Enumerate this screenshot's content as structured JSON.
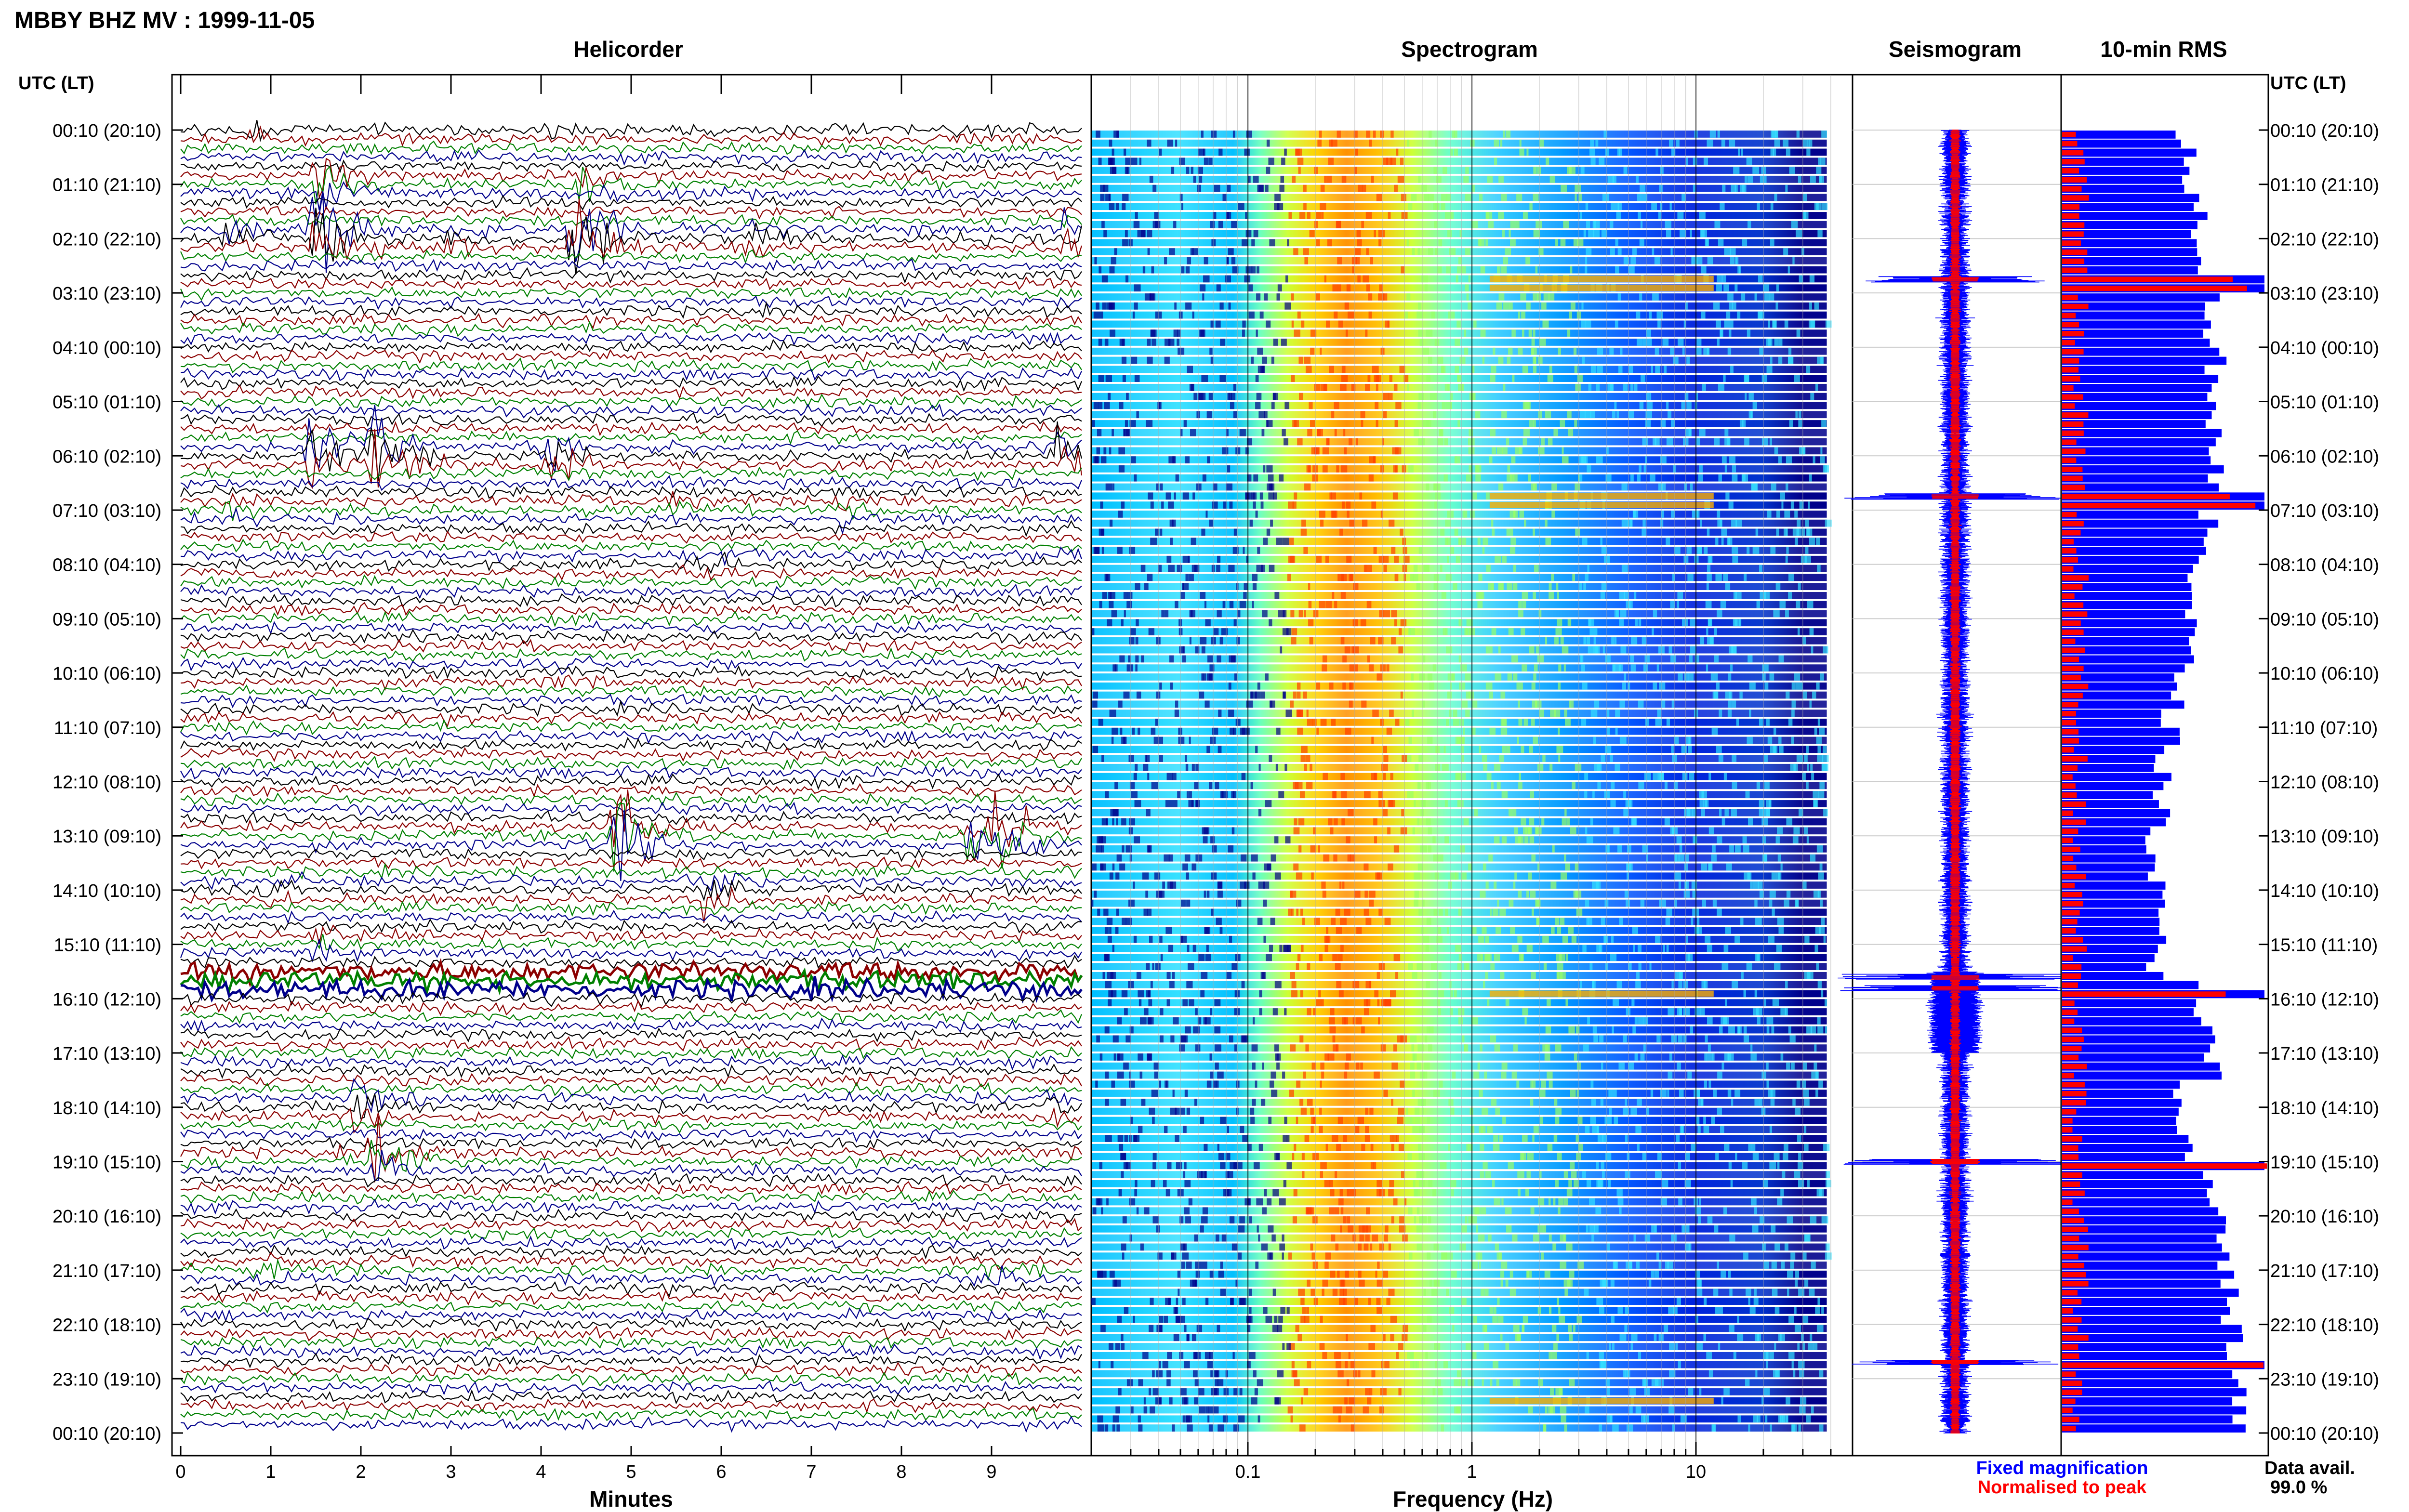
{
  "header": {
    "title": "MBBY BHZ MV : 1999-11-05",
    "left_axis_title": "UTC (LT)",
    "right_axis_title": "UTC (LT)"
  },
  "panels": {
    "helicorder": "Helicorder",
    "spectrogram": "Spectrogram",
    "seismogram": "Seismogram",
    "rms": "10-min RMS"
  },
  "legend": {
    "fixed": "Fixed magnification",
    "normalised": "Normalised to peak",
    "fixed_color": "#0000ff",
    "normalised_color": "#ff0000"
  },
  "data_avail": {
    "label": "Data avail.",
    "value": "99.0 %"
  },
  "colors": {
    "trace_cycle": [
      "#000000",
      "#8b0000",
      "#008000",
      "#00008b"
    ],
    "rms_fixed": "#0000ff",
    "rms_normalised": "#ff0000"
  },
  "chart_data": [
    {
      "type": "line",
      "name": "helicorder",
      "title": "Helicorder",
      "xlabel": "Minutes",
      "xticks": [
        "0",
        "1",
        "2",
        "3",
        "4",
        "5",
        "6",
        "7",
        "8",
        "9"
      ],
      "xlim": [
        0,
        10
      ],
      "time_labels": [
        "00:10 (20:10)",
        "01:10 (21:10)",
        "02:10 (22:10)",
        "03:10 (23:10)",
        "04:10 (00:10)",
        "05:10 (01:10)",
        "06:10 (02:10)",
        "07:10 (03:10)",
        "08:10 (04:10)",
        "09:10 (05:10)",
        "10:10 (06:10)",
        "11:10 (07:10)",
        "12:10 (08:10)",
        "13:10 (09:10)",
        "14:10 (10:10)",
        "15:10 (11:10)",
        "16:10 (12:10)",
        "17:10 (13:10)",
        "18:10 (14:10)",
        "19:10 (15:10)",
        "20:10 (16:10)",
        "21:10 (17:10)",
        "22:10 (18:10)",
        "23:10 (19:10)",
        "00:10 (20:10)"
      ],
      "events": [
        {
          "hour": 0,
          "minute": 0.7,
          "amp": 2.5
        },
        {
          "hour": 0,
          "minute": 4.05,
          "amp": 1.8
        },
        {
          "hour": 1,
          "minute": 1.5,
          "amp": 5.0
        },
        {
          "hour": 1,
          "minute": 4.4,
          "amp": 4.5
        },
        {
          "hour": 2,
          "minute": 1.45,
          "amp": 11
        },
        {
          "hour": 2,
          "minute": 4.35,
          "amp": 10
        },
        {
          "hour": 2,
          "minute": 0.5,
          "amp": 2.5
        },
        {
          "hour": 2,
          "minute": 3.0,
          "amp": 3.2
        },
        {
          "hour": 2,
          "minute": 6.3,
          "amp": 3.5
        },
        {
          "hour": 2,
          "minute": 9.8,
          "amp": 4.0
        },
        {
          "hour": 6,
          "minute": 1.4,
          "amp": 7
        },
        {
          "hour": 6,
          "minute": 2.1,
          "amp": 8
        },
        {
          "hour": 6,
          "minute": 4.05,
          "amp": 6
        },
        {
          "hour": 6,
          "minute": 9.7,
          "amp": 6
        },
        {
          "hour": 7,
          "minute": 0.5,
          "amp": 2.0
        },
        {
          "hour": 7,
          "minute": 5.4,
          "amp": 2.5
        },
        {
          "hour": 7,
          "minute": 7.3,
          "amp": 2.5
        },
        {
          "hour": 8,
          "minute": 5.5,
          "amp": 2.0
        },
        {
          "hour": 8,
          "minute": 6.0,
          "amp": 1.8
        },
        {
          "hour": 10,
          "minute": 4.2,
          "amp": 1.8
        },
        {
          "hour": 13,
          "minute": 4.8,
          "amp": 9
        },
        {
          "hour": 13,
          "minute": 9.0,
          "amp": 7
        },
        {
          "hour": 13,
          "minute": 8.7,
          "amp": 6
        },
        {
          "hour": 14,
          "minute": 0.9,
          "amp": 2.3
        },
        {
          "hour": 14,
          "minute": 5.8,
          "amp": 3.5
        },
        {
          "hour": 15,
          "minute": 1.5,
          "amp": 2.0
        },
        {
          "hour": 18,
          "minute": 1.9,
          "amp": 5
        },
        {
          "hour": 18,
          "minute": 9.6,
          "amp": 2.5
        },
        {
          "hour": 19,
          "minute": 2.1,
          "amp": 7
        },
        {
          "hour": 21,
          "minute": 0.8,
          "amp": 2.3
        },
        {
          "hour": 21,
          "minute": 8.9,
          "amp": 2.8
        }
      ],
      "busy_band_hour": 15.6
    },
    {
      "type": "heatmap",
      "name": "spectrogram",
      "title": "Spectrogram",
      "xlabel": "Frequency (Hz)",
      "xscale": "log",
      "xlim": [
        0.02,
        50
      ],
      "xticks": [
        "0.1",
        "1",
        "10"
      ],
      "colormap": [
        "#00008b",
        "#0000ff",
        "#0066ff",
        "#00bfff",
        "#33e0ff",
        "#99ff66",
        "#ffff00",
        "#ffb000",
        "#ff4000"
      ],
      "peak_band_hz": [
        0.2,
        0.45
      ],
      "highlight_rows_hour": [
        2.75,
        6.75,
        15.8,
        23.3
      ]
    },
    {
      "type": "line",
      "name": "seismogram",
      "title": "Seismogram",
      "events_hour": [
        2.75,
        6.75,
        15.6,
        15.8,
        19.0,
        22.7
      ]
    },
    {
      "type": "bar",
      "name": "rms",
      "title": "10-min RMS",
      "series": [
        {
          "name": "Fixed magnification",
          "color": "#0000ff"
        },
        {
          "name": "Normalised to peak",
          "color": "#ff0000"
        }
      ],
      "spikes_hour": [
        2.75,
        6.75,
        15.8,
        19.0,
        22.7
      ]
    }
  ]
}
